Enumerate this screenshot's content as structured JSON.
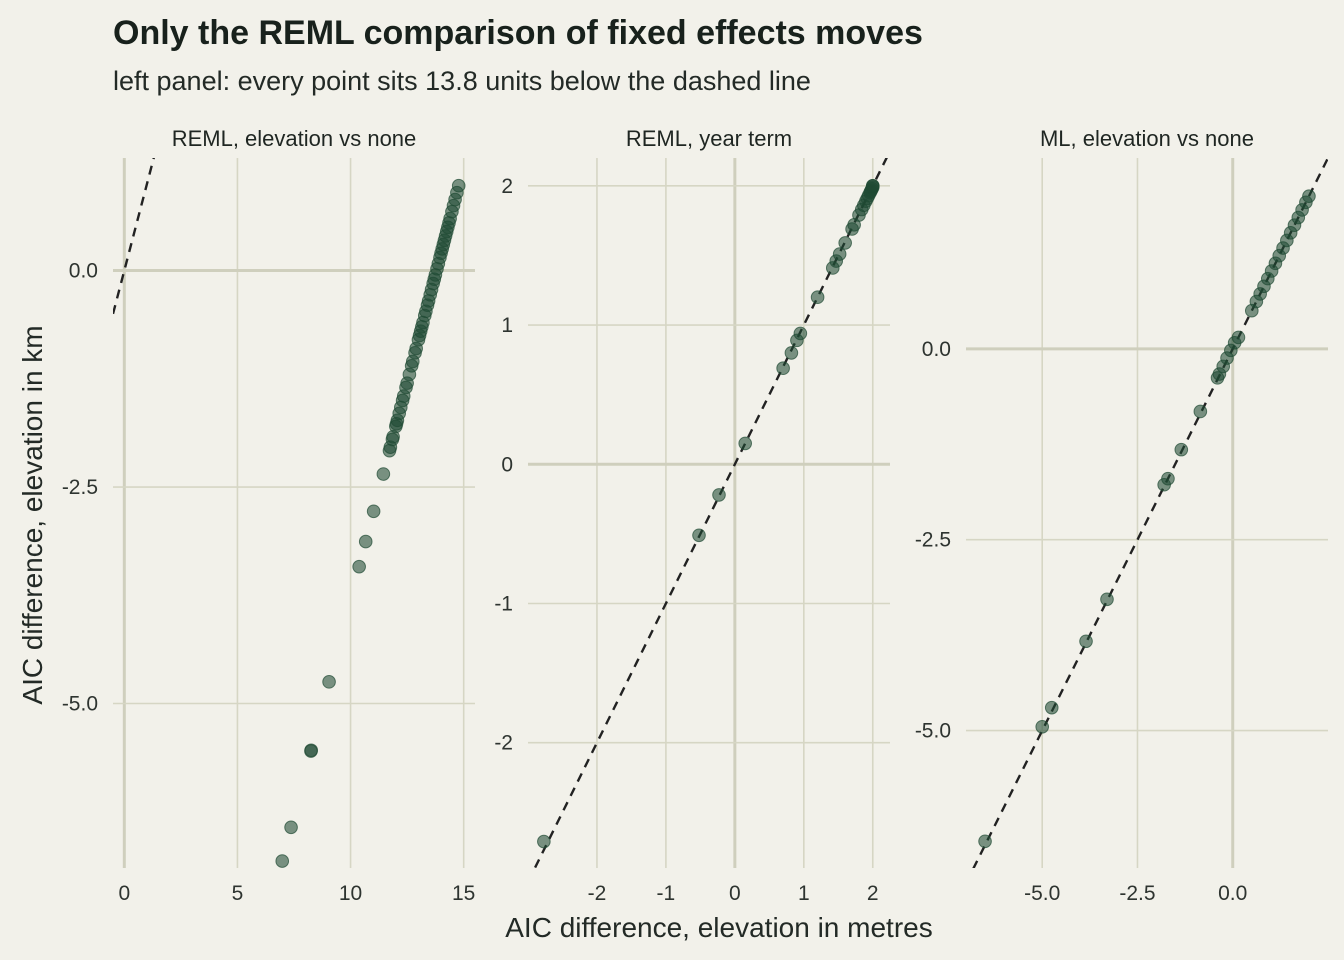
{
  "title": "Only the REML comparison of fixed effects moves",
  "subtitle": "left panel: every point sits 13.8 units below the dashed line",
  "xlabel": "AIC difference, elevation in metres",
  "ylabel": "AIC difference, elevation in km",
  "colors": {
    "background": "#f2f1ea",
    "grid": "#d6d6c4",
    "zero_line": "#cfcfbd",
    "point_fill": "#1f4a33",
    "dashed_line": "#222222"
  },
  "chart_data": [
    {
      "type": "scatter",
      "panel": "REML, elevation vs none",
      "xlim": [
        -0.5,
        15.5
      ],
      "ylim": [
        -6.9,
        1.3
      ],
      "xticks": [
        0,
        5,
        10,
        15
      ],
      "xtick_labels": [
        "0",
        "5",
        "10",
        "15"
      ],
      "yticks": [
        0.0,
        -2.5,
        -5.0
      ],
      "ytick_labels": [
        "0.0",
        "-2.5",
        "-5.0"
      ],
      "reference_line": {
        "intercept": 0,
        "slope": 1,
        "style": "dashed"
      },
      "x": [
        6.98,
        7.37,
        8.26,
        8.25,
        9.05,
        10.38,
        10.67,
        11.02,
        11.45,
        11.72,
        11.76,
        11.85,
        11.88,
        12.0,
        12.03,
        12.07,
        12.15,
        12.22,
        12.3,
        12.35,
        12.45,
        12.5,
        12.6,
        12.7,
        12.75,
        12.85,
        12.9,
        13.0,
        13.05,
        13.1,
        13.15,
        13.2,
        13.28,
        13.33,
        13.4,
        13.45,
        13.52,
        13.58,
        13.65,
        13.7,
        13.75,
        13.82,
        13.88,
        13.95,
        14.0,
        14.05,
        14.1,
        14.15,
        14.2,
        14.25,
        14.3,
        14.35,
        14.4,
        14.48,
        14.55,
        14.62,
        14.7,
        14.78
      ],
      "y": [
        -6.82,
        -6.43,
        -5.54,
        -5.55,
        -4.75,
        -3.42,
        -3.13,
        -2.78,
        -2.35,
        -2.08,
        -2.04,
        -1.95,
        -1.92,
        -1.8,
        -1.77,
        -1.73,
        -1.65,
        -1.58,
        -1.5,
        -1.45,
        -1.35,
        -1.3,
        -1.2,
        -1.1,
        -1.05,
        -0.95,
        -0.9,
        -0.8,
        -0.75,
        -0.7,
        -0.65,
        -0.6,
        -0.52,
        -0.47,
        -0.4,
        -0.35,
        -0.28,
        -0.22,
        -0.15,
        -0.1,
        -0.05,
        0.02,
        0.08,
        0.15,
        0.2,
        0.25,
        0.3,
        0.35,
        0.4,
        0.45,
        0.5,
        0.55,
        0.6,
        0.68,
        0.75,
        0.82,
        0.9,
        0.98
      ]
    },
    {
      "type": "scatter",
      "panel": "REML, year term",
      "xlim": [
        -3.0,
        2.25
      ],
      "ylim": [
        -2.9,
        2.2
      ],
      "xticks": [
        -2,
        -1,
        0,
        1,
        2
      ],
      "xtick_labels": [
        "-2",
        "-1",
        "0",
        "1",
        "2"
      ],
      "yticks": [
        2,
        1,
        0,
        -1,
        -2
      ],
      "ytick_labels": [
        "2",
        "1",
        "0",
        "-1",
        "-2"
      ],
      "reference_line": {
        "intercept": 0,
        "slope": 1,
        "style": "dashed"
      },
      "x": [
        -2.77,
        -0.52,
        -0.23,
        0.15,
        0.7,
        0.82,
        0.9,
        0.95,
        1.2,
        1.42,
        1.47,
        1.52,
        1.6,
        1.7,
        1.73,
        1.8,
        1.84,
        1.87,
        1.9,
        1.92,
        1.94,
        1.96,
        1.97,
        1.98,
        1.99,
        2.0,
        2.0,
        2.0
      ],
      "y": [
        -2.71,
        -0.51,
        -0.22,
        0.15,
        0.69,
        0.8,
        0.89,
        0.94,
        1.2,
        1.41,
        1.46,
        1.51,
        1.59,
        1.69,
        1.72,
        1.79,
        1.83,
        1.86,
        1.89,
        1.91,
        1.93,
        1.95,
        1.96,
        1.97,
        1.98,
        1.99,
        2.0,
        2.0
      ]
    },
    {
      "type": "scatter",
      "panel": "ML, elevation vs none",
      "xlim": [
        -7.0,
        2.5
      ],
      "ylim": [
        -6.8,
        2.5
      ],
      "xticks": [
        -5.0,
        -2.5,
        0.0
      ],
      "xtick_labels": [
        "-5.0",
        "-2.5",
        "0.0"
      ],
      "yticks": [
        0.0,
        -2.5,
        -5.0
      ],
      "ytick_labels": [
        "0.0",
        "-2.5",
        "-5.0"
      ],
      "reference_line": {
        "intercept": 0,
        "slope": 1,
        "style": "dashed"
      },
      "x": [
        -6.5,
        -5.0,
        -4.75,
        -3.85,
        -3.3,
        -1.7,
        -1.8,
        -1.35,
        -0.85,
        -0.4,
        -0.35,
        -0.25,
        -0.15,
        -0.05,
        0.05,
        0.15,
        0.5,
        0.62,
        0.72,
        0.82,
        0.92,
        1.02,
        1.12,
        1.22,
        1.32,
        1.42,
        1.52,
        1.62,
        1.72,
        1.82,
        1.92,
        2.0
      ],
      "y": [
        -6.45,
        -4.95,
        -4.7,
        -3.83,
        -3.28,
        -1.7,
        -1.78,
        -1.32,
        -0.82,
        -0.38,
        -0.33,
        -0.23,
        -0.12,
        -0.02,
        0.08,
        0.15,
        0.5,
        0.62,
        0.72,
        0.82,
        0.92,
        1.02,
        1.12,
        1.22,
        1.32,
        1.42,
        1.52,
        1.62,
        1.72,
        1.82,
        1.92,
        2.0
      ]
    }
  ]
}
